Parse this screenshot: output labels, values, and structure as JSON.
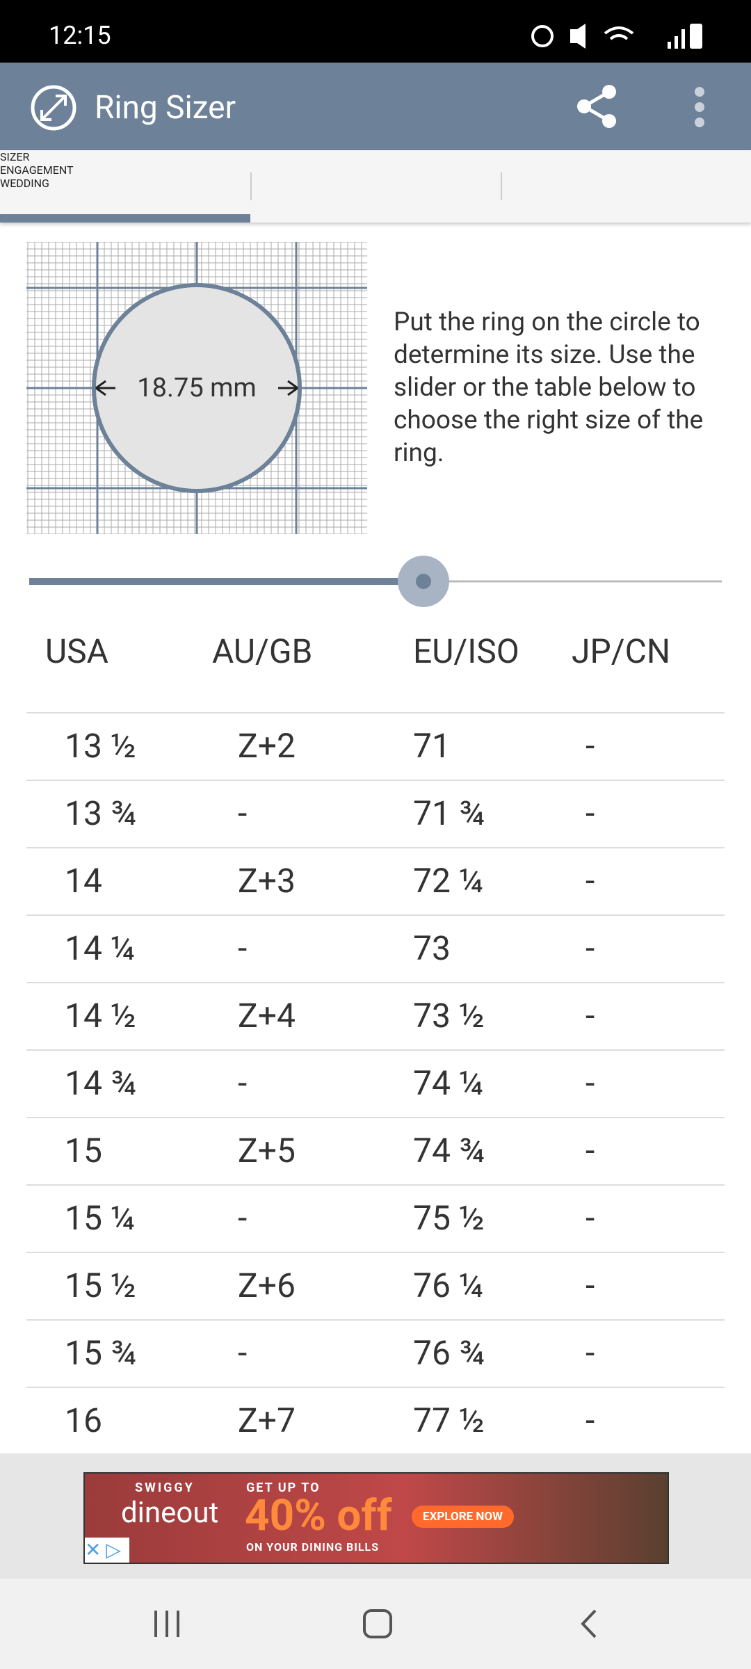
{
  "status_bar": {
    "time": "12:15"
  },
  "app_bar": {
    "title": "Ring Sizer"
  },
  "tabs": [
    "SIZER",
    "ENGAGEMENT",
    "WEDDING"
  ],
  "sizer": {
    "diameter_label": "18.75 mm",
    "instructions": "Put the ring on the circle to determine its size. Use the slider or the table below to choose the right size of the ring."
  },
  "table": {
    "headers": [
      "USA",
      "AU/GB",
      "EU/ISO",
      "JP/CN"
    ],
    "rows": [
      [
        "13 ½",
        "Z+2",
        "71",
        "-"
      ],
      [
        "13 ¾",
        "-",
        "71 ¾",
        "-"
      ],
      [
        "14",
        "Z+3",
        "72 ¼",
        "-"
      ],
      [
        "14 ¼",
        "-",
        "73",
        "-"
      ],
      [
        "14 ½",
        "Z+4",
        "73 ½",
        "-"
      ],
      [
        "14 ¾",
        "-",
        "74 ¼",
        "-"
      ],
      [
        "15",
        "Z+5",
        "74 ¾",
        "-"
      ],
      [
        "15 ¼",
        "-",
        "75 ½",
        "-"
      ],
      [
        "15 ½",
        "Z+6",
        "76 ¼",
        "-"
      ],
      [
        "15 ¾",
        "-",
        "76 ¾",
        "-"
      ],
      [
        "16",
        "Z+7",
        "77 ½",
        "-"
      ]
    ]
  },
  "ad": {
    "brand_top": "SWIGGY",
    "brand": "dineout",
    "line1": "GET UP TO",
    "offer": "40% off",
    "line2": "ON YOUR DINING BILLS",
    "cta": "EXPLORE NOW"
  }
}
